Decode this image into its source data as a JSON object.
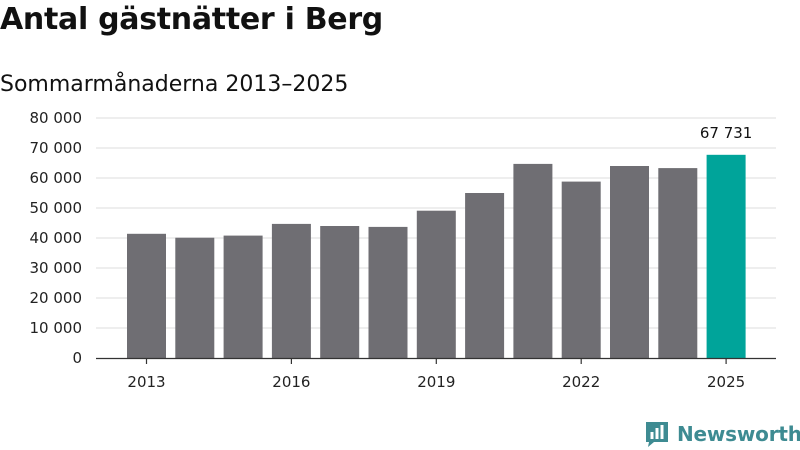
{
  "chart_data": {
    "type": "bar",
    "title": "Antal gästnätter i Berg",
    "subtitle": "Sommarmånaderna 2013–2025",
    "xlabel": "",
    "ylabel": "",
    "x": [
      2013,
      2014,
      2015,
      2016,
      2017,
      2018,
      2019,
      2020,
      2021,
      2022,
      2023,
      2024,
      2025
    ],
    "values": [
      41400,
      40100,
      40800,
      44700,
      44000,
      43700,
      49100,
      55000,
      64700,
      58800,
      64000,
      63300,
      67731
    ],
    "x_ticks": [
      "2013",
      "2016",
      "2019",
      "2022",
      "2025"
    ],
    "ylim": [
      0,
      80000
    ],
    "y_ticks": [
      "0",
      "10 000",
      "20 000",
      "30 000",
      "40 000",
      "50 000",
      "60 000",
      "70 000",
      "80 000"
    ],
    "y_tick_values": [
      0,
      10000,
      20000,
      30000,
      40000,
      50000,
      60000,
      70000,
      80000
    ],
    "data_labels": [
      {
        "year": 2025,
        "text": "67 731"
      }
    ],
    "highlight_year": 2025,
    "grid": true,
    "legend": "none",
    "colors": {
      "bar": "#6f6e73",
      "highlight": "#00a49a",
      "grid": "#dedede",
      "axis": "#333333"
    }
  },
  "brand": {
    "name": "Newsworthy",
    "icon": "newsworthy-logo-icon",
    "color": "#3e8b92"
  }
}
